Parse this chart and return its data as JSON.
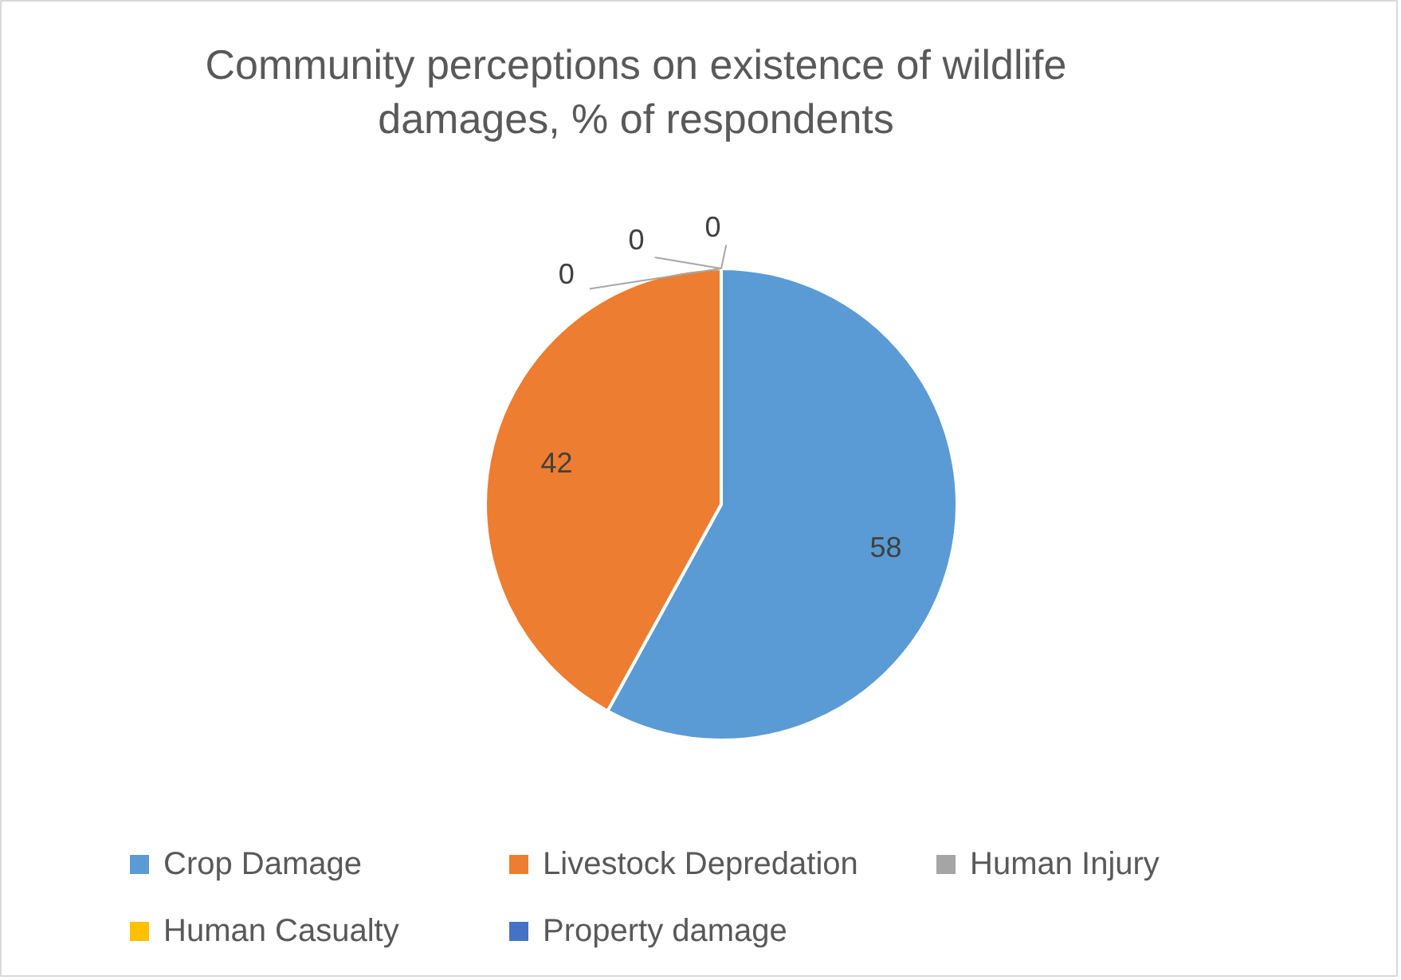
{
  "chart_data": {
    "type": "pie",
    "title": "Community perceptions on existence of wildlife damages, % of respondents",
    "categories": [
      "Crop Damage",
      "Livestock Depredation",
      "Human Injury",
      "Human Casualty",
      "Property damage"
    ],
    "values": [
      58,
      42,
      0,
      0,
      0
    ],
    "colors": [
      "#5b9bd5",
      "#ed7d31",
      "#a5a5a5",
      "#ffc000",
      "#4472c4"
    ],
    "value_labels": [
      "58",
      "42",
      "0",
      "0",
      "0"
    ],
    "legend": "bottom"
  }
}
